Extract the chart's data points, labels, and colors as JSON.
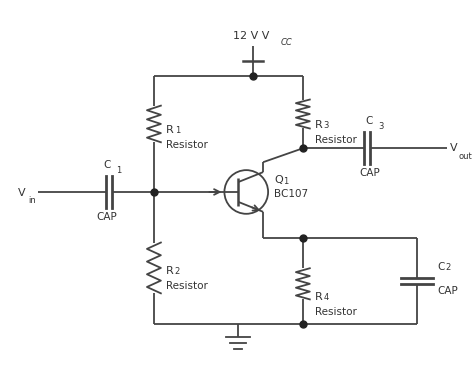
{
  "bg_color": "#ffffff",
  "line_color": "#444444",
  "dot_color": "#222222",
  "text_color": "#333333",
  "vcc_text": "12 V V",
  "vcc_sub": "CC",
  "vout_label": "V",
  "vout_sub": "out",
  "vin_label": "V",
  "vin_sub": "in",
  "q_label": "Q",
  "q_sub": "1",
  "q_model": "BC107",
  "r1_label": "R",
  "r1_sub": "1",
  "r1_name": "Resistor",
  "r2_label": "R",
  "r2_sub": "2",
  "r2_name": "Resistor",
  "r3_label": "R",
  "r3_sub": "3",
  "r3_name": "Resistor",
  "r4_label": "R",
  "r4_sub": "4",
  "r4_name": "Resistor",
  "c1_label": "C",
  "c1_sub": "1",
  "c1_name": "CAP",
  "c2_label": "C",
  "c2_sub": "2",
  "c2_name": "CAP",
  "c3_label": "C",
  "c3_sub": "3",
  "c3_name": "CAP"
}
